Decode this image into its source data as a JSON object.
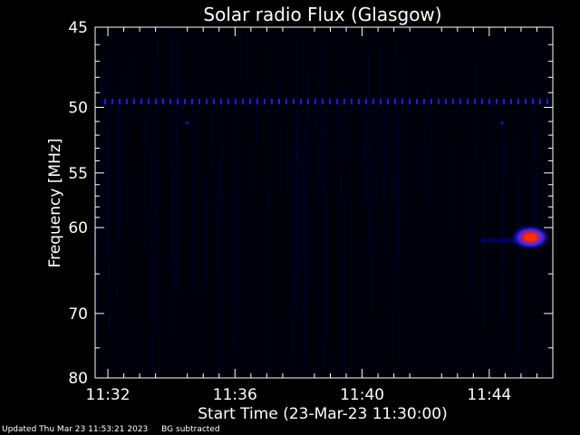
{
  "chart_data": {
    "type": "heatmap",
    "title": "Solar radio Flux (Glasgow)",
    "xlabel": "Start Time (23-Mar-23 11:30:00)",
    "ylabel_text": "Frequency ",
    "ylabel_unit": "MHz",
    "x_range_minutes": [
      691.6,
      706.0
    ],
    "x_ticks": [
      {
        "label": "11:32",
        "minutes": 692
      },
      {
        "label": "11:36",
        "minutes": 696
      },
      {
        "label": "11:40",
        "minutes": 700
      },
      {
        "label": "11:44",
        "minutes": 704
      }
    ],
    "y_scale": "reciprocal",
    "y_range_mhz": [
      45,
      80
    ],
    "y_ticks": [
      45,
      50,
      55,
      60,
      70,
      80
    ],
    "colormap": [
      "#000000",
      "#000050",
      "#0000ff",
      "#ff0000",
      "#ffaa00"
    ],
    "features": [
      {
        "kind": "interference-line",
        "freq_mhz": 49.6,
        "color": "#1a1aff"
      },
      {
        "kind": "burst",
        "time_minutes": 705.3,
        "freq_mhz": 61.0,
        "peak_color": "#ff3300"
      },
      {
        "kind": "dot",
        "time_minutes": 694.5,
        "freq_mhz": 51.1
      },
      {
        "kind": "dot",
        "time_minutes": 704.4,
        "freq_mhz": 51.1
      }
    ]
  },
  "footer": {
    "updated": "Updated Thu Mar 23 11:53:21 2023",
    "note": "BG subtracted"
  }
}
